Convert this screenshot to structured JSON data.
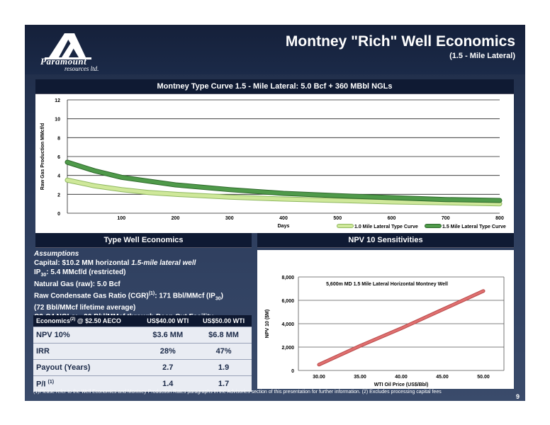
{
  "header": {
    "logo_word": "Paramount",
    "logo_sub": "resources ltd.",
    "title": "Montney  \"Rich\"  Well Economics",
    "subtitle": "(1.5 - Mile Lateral)"
  },
  "sections": {
    "type_curve_title": "Montney Type Curve 1.5 - Mile Lateral: 5.0 Bcf + 360 MBbl NGLs",
    "type_well_title": "Type Well Economics",
    "npv_title": "NPV 10 Sensitivities"
  },
  "assumptions": {
    "heading": "Assumptions",
    "capital_prefix": "Capital: $10.2 MM horizontal ",
    "capital_italic": "1.5-mile lateral well",
    "ip_label": "IP",
    "ip_sub": "30",
    "ip_value": ": 5.4 MMcf/d (restricted)",
    "natgas": "Natural Gas (raw): 5.0 Bcf",
    "cgr_prefix": "Raw Condensate Gas Ratio (CGR)",
    "cgr_sup": "(1)",
    "cgr_mid": ": 171 Bbl/MMcf  (IP",
    "cgr_sub": "30",
    "cgr_end": ")",
    "lifetime": "(72 Bbl/MMcf lifetime average)",
    "ngl": "C2-C4 NGLs: ~90 Bbl/MMcf through Deep Cut Facility"
  },
  "econ_table": {
    "header_label": "Economics",
    "header_sup": "(2)",
    "header_suffix": " @ $2.50 AECO",
    "col1": "US$40.00  WTI",
    "col2": "US$50.00 WTI",
    "rows": [
      {
        "label": "NPV 10%",
        "sup": "",
        "v1": "$3.6 MM",
        "v2": "$6.8 MM"
      },
      {
        "label": "IRR",
        "sup": "",
        "v1": "28%",
        "v2": "47%"
      },
      {
        "label": "Payout (Years)",
        "sup": "",
        "v1": "2.7",
        "v2": "1.9"
      },
      {
        "label": "P/I ",
        "sup": "(1)",
        "v1": "1.4",
        "v2": "1.7"
      }
    ]
  },
  "footnote": "(1)Please refer to the Well Economics and Montney Production Rates paragraphs in the Advisories section of this presentation for further information. (2) Excludes processing capital fees",
  "page_number": "9",
  "colors": {
    "curve_1_0": "#cfe89a",
    "curve_1_5": "#4f9a4a",
    "npv_line": "#e07070"
  },
  "chart_data": [
    {
      "type": "line",
      "title": "",
      "xlabel": "Days",
      "ylabel": "Raw Gas Production MMcf/d",
      "xlim": [
        0,
        800
      ],
      "ylim": [
        0,
        12
      ],
      "x_ticks": [
        "100",
        "200",
        "300",
        "400",
        "500",
        "600",
        "700",
        "800"
      ],
      "y_ticks": [
        "0",
        "2",
        "4",
        "6",
        "8",
        "10",
        "12"
      ],
      "grid": true,
      "legend_position": "bottom-right",
      "series": [
        {
          "name": "1.0 Mile Lateral Type Curve",
          "x": [
            0,
            50,
            100,
            150,
            200,
            300,
            400,
            500,
            600,
            700,
            800
          ],
          "y": [
            3.5,
            2.9,
            2.5,
            2.2,
            2.0,
            1.7,
            1.5,
            1.35,
            1.2,
            1.1,
            1.0
          ]
        },
        {
          "name": "1.5 Mile Lateral Type Curve",
          "x": [
            0,
            50,
            100,
            150,
            200,
            300,
            400,
            500,
            600,
            700,
            800
          ],
          "y": [
            5.4,
            4.5,
            3.8,
            3.4,
            3.0,
            2.5,
            2.1,
            1.85,
            1.65,
            1.45,
            1.35
          ]
        }
      ]
    },
    {
      "type": "line",
      "title": "5,600m MD 1.5 Mile Lateral Horizontal Montney Well",
      "xlabel": "WTI Oil Price (US$/Bbl)",
      "ylabel": "NPV 10 ($M)",
      "xlim": [
        27.5,
        52.5
      ],
      "ylim": [
        0,
        8000
      ],
      "x_ticks": [
        "30.00",
        "35.00",
        "40.00",
        "45.00",
        "50.00"
      ],
      "y_ticks": [
        "0",
        "2,000",
        "4,000",
        "6,000",
        "8,000"
      ],
      "grid": true,
      "series": [
        {
          "name": "",
          "x": [
            30,
            35,
            40,
            45,
            50
          ],
          "y": [
            500,
            2100,
            3600,
            5200,
            6800
          ]
        }
      ]
    }
  ]
}
